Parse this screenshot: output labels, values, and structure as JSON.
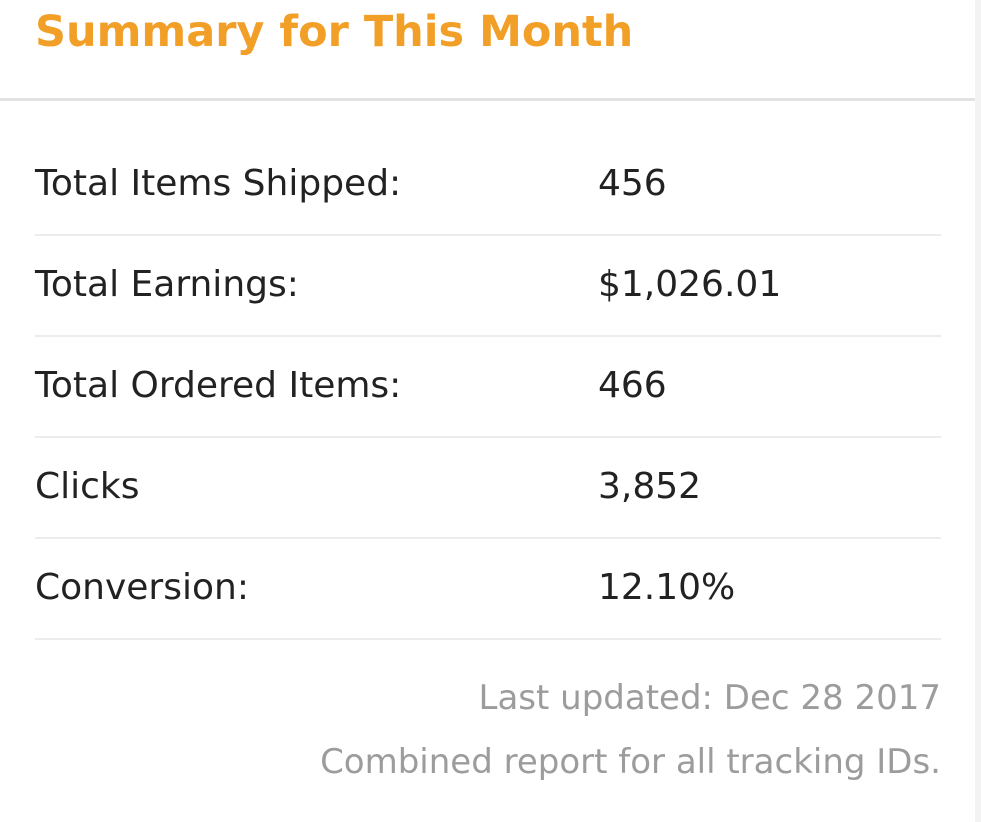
{
  "header": {
    "title": "Summary for This Month"
  },
  "summary": {
    "rows": [
      {
        "label": "Total Items Shipped:",
        "value": "456"
      },
      {
        "label": "Total Earnings:",
        "value": "$1,026.01"
      },
      {
        "label": "Total Ordered Items:",
        "value": "466"
      },
      {
        "label": "Clicks",
        "value": "3,852"
      },
      {
        "label": "Conversion:",
        "value": "12.10%"
      }
    ]
  },
  "footer": {
    "last_updated": "Last updated: Dec 28 2017",
    "note": "Combined report for all tracking IDs."
  },
  "colors": {
    "title": "#f29f27",
    "text": "#222222",
    "muted": "#9c9c9c",
    "divider": "#ececec"
  }
}
